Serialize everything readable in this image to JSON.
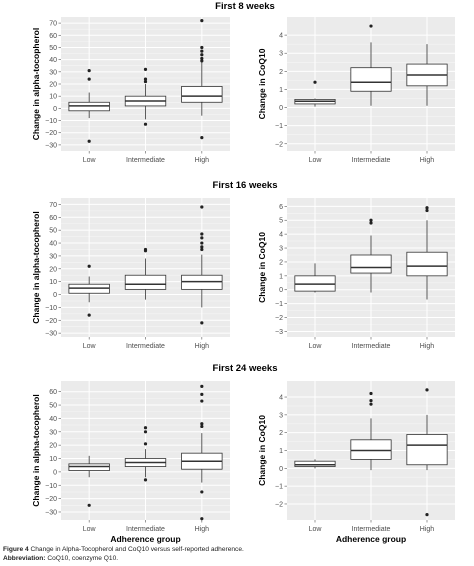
{
  "colors": {
    "panel_bg": "#ebebeb",
    "grid_major": "#ffffff",
    "box_fill": "#ffffff",
    "box_stroke": "#333333",
    "point": "#222222",
    "axis_text": "#4d4d4d",
    "title_text": "#000000"
  },
  "caption": {
    "figure_label": "Figure 4",
    "figure_text": "Change in Alpha-Tocopherol and CoQ10 versus self-reported adherence.",
    "abbrev_label": "Abbreviation:",
    "abbrev_text": "CoQ10, coenzyme Q10."
  },
  "chart_data": [
    {
      "type": "boxplot",
      "row_title": "First 8 weeks",
      "ylabel": "Change in alpha-tocopherol",
      "xlabel": "",
      "categories": [
        "Low",
        "Intermediate",
        "High"
      ],
      "ylim": [
        -35,
        75
      ],
      "yticks": [
        -30,
        -20,
        -10,
        0,
        10,
        20,
        30,
        40,
        50,
        60,
        70
      ],
      "grid": true,
      "boxes": [
        {
          "q1": -2,
          "median": 2,
          "q3": 5,
          "whisker_low": -8,
          "whisker_high": 13,
          "outliers": [
            31,
            24,
            -27
          ]
        },
        {
          "q1": 2,
          "median": 6,
          "q3": 10,
          "whisker_low": -9,
          "whisker_high": 20,
          "outliers": [
            32,
            24,
            22,
            -13
          ]
        },
        {
          "q1": 5,
          "median": 10,
          "q3": 18,
          "whisker_low": -6,
          "whisker_high": 38,
          "outliers": [
            72,
            50,
            47,
            44,
            41,
            39,
            -24
          ]
        }
      ]
    },
    {
      "type": "boxplot",
      "row_title": "First 8 weeks",
      "ylabel": "Change in CoQ10",
      "xlabel": "",
      "categories": [
        "Low",
        "Intermediate",
        "High"
      ],
      "ylim": [
        -2.4,
        5
      ],
      "yticks": [
        -2,
        -1,
        0,
        1,
        2,
        3,
        4
      ],
      "grid": true,
      "boxes": [
        {
          "q1": 0.2,
          "median": 0.35,
          "q3": 0.45,
          "whisker_low": 0.05,
          "whisker_high": 0.5,
          "outliers": [
            1.4
          ]
        },
        {
          "q1": 0.9,
          "median": 1.4,
          "q3": 2.2,
          "whisker_low": 0.1,
          "whisker_high": 3.6,
          "outliers": [
            4.5
          ]
        },
        {
          "q1": 1.2,
          "median": 1.8,
          "q3": 2.4,
          "whisker_low": 0.1,
          "whisker_high": 3.5,
          "outliers": []
        }
      ]
    },
    {
      "type": "boxplot",
      "row_title": "First 16 weeks",
      "ylabel": "Change in alpha-tocopherol",
      "xlabel": "",
      "categories": [
        "Low",
        "Intermediate",
        "High"
      ],
      "ylim": [
        -33,
        75
      ],
      "yticks": [
        -30,
        -20,
        -10,
        0,
        10,
        20,
        30,
        40,
        50,
        60,
        70
      ],
      "grid": true,
      "boxes": [
        {
          "q1": 1,
          "median": 5,
          "q3": 8,
          "whisker_low": -6,
          "whisker_high": 14,
          "outliers": [
            22,
            -16
          ]
        },
        {
          "q1": 4,
          "median": 8,
          "q3": 15,
          "whisker_low": -4,
          "whisker_high": 28,
          "outliers": [
            35,
            34
          ]
        },
        {
          "q1": 4,
          "median": 10,
          "q3": 15,
          "whisker_low": -10,
          "whisker_high": 31,
          "outliers": [
            68,
            47,
            44,
            40,
            37,
            35,
            -22
          ]
        }
      ]
    },
    {
      "type": "boxplot",
      "row_title": "First 16 weeks",
      "ylabel": "Change in CoQ10",
      "xlabel": "",
      "categories": [
        "Low",
        "Intermediate",
        "High"
      ],
      "ylim": [
        -3.4,
        6.6
      ],
      "yticks": [
        -3,
        -2,
        -1,
        0,
        1,
        2,
        3,
        4,
        5,
        6
      ],
      "grid": true,
      "boxes": [
        {
          "q1": -0.1,
          "median": 0.4,
          "q3": 1.0,
          "whisker_low": -0.2,
          "whisker_high": 1.9,
          "outliers": []
        },
        {
          "q1": 1.2,
          "median": 1.6,
          "q3": 2.5,
          "whisker_low": -0.2,
          "whisker_high": 3.9,
          "outliers": [
            5.0,
            4.8
          ]
        },
        {
          "q1": 1.0,
          "median": 1.7,
          "q3": 2.7,
          "whisker_low": -0.7,
          "whisker_high": 5.0,
          "outliers": [
            5.9,
            5.7
          ]
        }
      ]
    },
    {
      "type": "boxplot",
      "row_title": "First 24 weeks",
      "ylabel": "Change in alpha-tocopherol",
      "xlabel": "Adherence group",
      "categories": [
        "Low",
        "Intermediate",
        "High"
      ],
      "ylim": [
        -36,
        68
      ],
      "yticks": [
        -30,
        -20,
        -10,
        0,
        10,
        20,
        30,
        40,
        50,
        60
      ],
      "grid": true,
      "boxes": [
        {
          "q1": 1,
          "median": 4,
          "q3": 6,
          "whisker_low": -4,
          "whisker_high": 12,
          "outliers": [
            -25
          ]
        },
        {
          "q1": 4,
          "median": 7,
          "q3": 10,
          "whisker_low": -4,
          "whisker_high": 17,
          "outliers": [
            33,
            30,
            21,
            -6
          ]
        },
        {
          "q1": 2,
          "median": 8,
          "q3": 14,
          "whisker_low": -8,
          "whisker_high": 29,
          "outliers": [
            64,
            58,
            53,
            36,
            34,
            -15,
            -35
          ]
        }
      ]
    },
    {
      "type": "boxplot",
      "row_title": "First 24 weeks",
      "ylabel": "Change in CoQ10",
      "xlabel": "Adherence group",
      "categories": [
        "Low",
        "Intermediate",
        "High"
      ],
      "ylim": [
        -2.9,
        4.9
      ],
      "yticks": [
        -2,
        -1,
        0,
        1,
        2,
        3,
        4
      ],
      "grid": true,
      "boxes": [
        {
          "q1": 0.1,
          "median": 0.2,
          "q3": 0.4,
          "whisker_low": 0.0,
          "whisker_high": 0.5,
          "outliers": []
        },
        {
          "q1": 0.5,
          "median": 1.0,
          "q3": 1.6,
          "whisker_low": -0.1,
          "whisker_high": 2.8,
          "outliers": [
            4.2,
            3.8,
            3.6
          ]
        },
        {
          "q1": 0.2,
          "median": 1.3,
          "q3": 1.9,
          "whisker_low": -0.1,
          "whisker_high": 3.0,
          "outliers": [
            4.4,
            -2.6
          ]
        }
      ]
    }
  ]
}
